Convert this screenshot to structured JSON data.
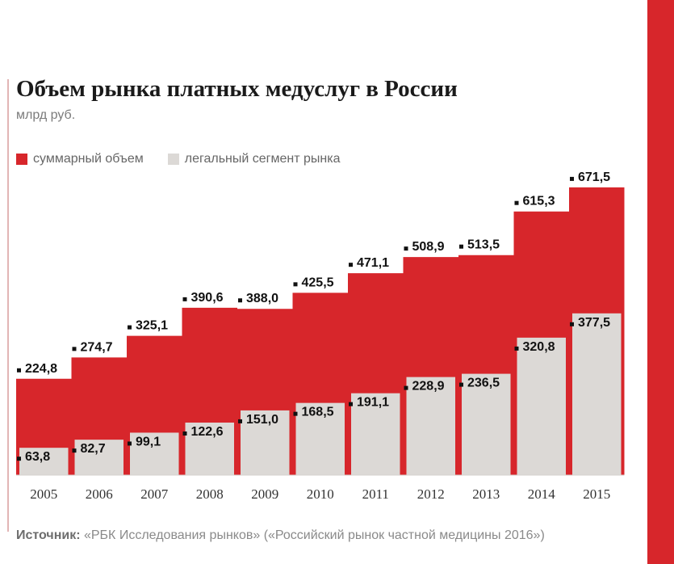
{
  "title": "Объем рынка платных медуслуг в России",
  "subtitle": "млрд руб.",
  "colors": {
    "total": "#d7262b",
    "legal": "#dcd9d6",
    "accent_stripe": "#d7262b"
  },
  "legend": [
    {
      "label": "суммарный объем",
      "color": "#d7262b"
    },
    {
      "label": "легальный сегмент рынка",
      "color": "#dcd9d6"
    }
  ],
  "source": {
    "label": "Источник:",
    "text": "«РБК Исследования рынков» («Российский рынок частной медицины 2016»)"
  },
  "chart_data": {
    "type": "area",
    "categories": [
      "2005",
      "2006",
      "2007",
      "2008",
      "2009",
      "2010",
      "2011",
      "2012",
      "2013",
      "2014",
      "2015"
    ],
    "series": [
      {
        "name": "суммарный объем",
        "values": [
          224.8,
          274.7,
          325.1,
          390.6,
          388.0,
          425.5,
          471.1,
          508.9,
          513.5,
          615.3,
          671.5
        ],
        "labels": [
          "224,8",
          "274,7",
          "325,1",
          "390,6",
          "388,0",
          "425,5",
          "471,1",
          "508,9",
          "513,5",
          "615,3",
          "671,5"
        ]
      },
      {
        "name": "легальный сегмент рынка",
        "values": [
          63.8,
          82.7,
          99.1,
          122.6,
          151.0,
          168.5,
          191.1,
          228.9,
          236.5,
          320.8,
          377.5
        ],
        "labels": [
          "63,8",
          "82,7",
          "99,1",
          "122,6",
          "151,0",
          "168,5",
          "191,1",
          "228,9",
          "236,5",
          "320,8",
          "377,5"
        ]
      }
    ],
    "ylim": [
      0,
      700
    ],
    "xlabel": "",
    "ylabel": "",
    "grid": false,
    "legend_position": "top-left"
  }
}
